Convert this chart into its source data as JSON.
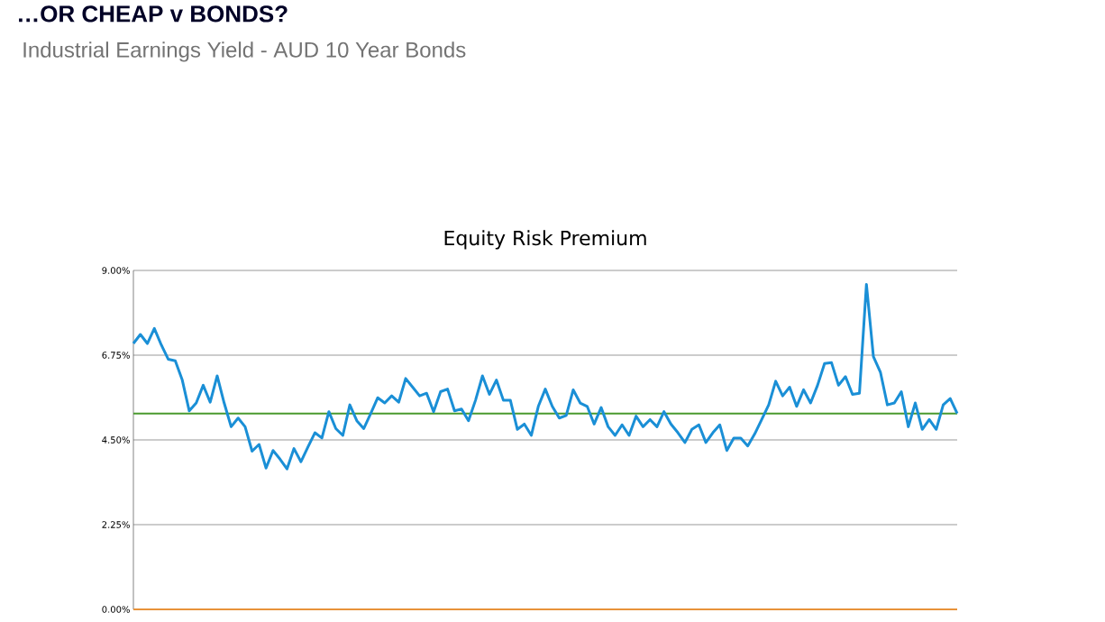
{
  "chart_data": {
    "type": "line",
    "title": "Equity Risk Premium",
    "annotations": [
      "…OR CHEAP v BONDS?",
      "Industrial Earnings Yield - AUD 10 Year Bonds"
    ],
    "categories": [
      null,
      null,
      null,
      null,
      null,
      null,
      null,
      null,
      null,
      null,
      null,
      null,
      null,
      null,
      null,
      null,
      null,
      null,
      null,
      null,
      null,
      null,
      null,
      null,
      null,
      null,
      null,
      null,
      null,
      null,
      null,
      null,
      null,
      null,
      null,
      null,
      null,
      null,
      null,
      null,
      null,
      null,
      null,
      null,
      null,
      null,
      null,
      null,
      null,
      null,
      null,
      null,
      null,
      null,
      null,
      null,
      null,
      null,
      null,
      null,
      null,
      null,
      null,
      null,
      null,
      null,
      null,
      null,
      null,
      null,
      null,
      null,
      null,
      null,
      null,
      null,
      null,
      null,
      null,
      null,
      null,
      null,
      null,
      null,
      null,
      null,
      null,
      null,
      null,
      null,
      null,
      null,
      null,
      null,
      null,
      null,
      null,
      null,
      null,
      null,
      null,
      null,
      null,
      null,
      null,
      null,
      null,
      null,
      null,
      null,
      null,
      null,
      null,
      null,
      null,
      null,
      null,
      null,
      null
    ],
    "series": [
      {
        "color": "#1a8fd6",
        "values": [
          7.06,
          7.3,
          7.06,
          7.46,
          7.02,
          6.64,
          6.6,
          6.09,
          5.27,
          5.48,
          5.95,
          5.5,
          6.2,
          5.48,
          4.85,
          5.08,
          4.85,
          4.2,
          4.38,
          3.75,
          4.22,
          3.99,
          3.73,
          4.27,
          3.92,
          4.31,
          4.69,
          4.55,
          5.25,
          4.8,
          4.62,
          5.43,
          5.01,
          4.8,
          5.2,
          5.62,
          5.48,
          5.67,
          5.5,
          6.13,
          5.9,
          5.67,
          5.74,
          5.25,
          5.78,
          5.85,
          5.27,
          5.32,
          5.01,
          5.55,
          6.2,
          5.71,
          6.09,
          5.55,
          5.55,
          4.78,
          4.92,
          4.62,
          5.39,
          5.85,
          5.39,
          5.08,
          5.15,
          5.83,
          5.48,
          5.39,
          4.92,
          5.36,
          4.85,
          4.62,
          4.9,
          4.62,
          5.13,
          4.85,
          5.04,
          4.85,
          5.25,
          4.92,
          4.69,
          4.43,
          4.78,
          4.9,
          4.43,
          4.69,
          4.9,
          4.22,
          4.55,
          4.55,
          4.34,
          4.66,
          5.04,
          5.43,
          6.06,
          5.67,
          5.9,
          5.39,
          5.83,
          5.48,
          5.95,
          6.53,
          6.55,
          5.95,
          6.18,
          5.71,
          5.74,
          8.63,
          6.71,
          6.3,
          5.43,
          5.48,
          5.78,
          4.85,
          5.48,
          4.78,
          5.04,
          4.78,
          5.43,
          5.6,
          5.2
        ]
      }
    ],
    "ylim": [
      0,
      9
    ],
    "yticks": [
      {
        "value": 0,
        "label": "0.00%"
      },
      {
        "value": 2.25,
        "label": "2.25%"
      },
      {
        "value": 4.5,
        "label": "4.50%"
      },
      {
        "value": 6.75,
        "label": "6.75%"
      },
      {
        "value": 9,
        "label": "9.00%"
      }
    ],
    "ref_lines": [
      {
        "axis": "y",
        "value": 5.2,
        "color": "#4a9a2e"
      },
      {
        "axis": "y",
        "value": 0,
        "color": "#e8923a"
      }
    ],
    "grid": "y",
    "tick_labels": "y",
    "marker": "none",
    "line_style": "solid"
  }
}
